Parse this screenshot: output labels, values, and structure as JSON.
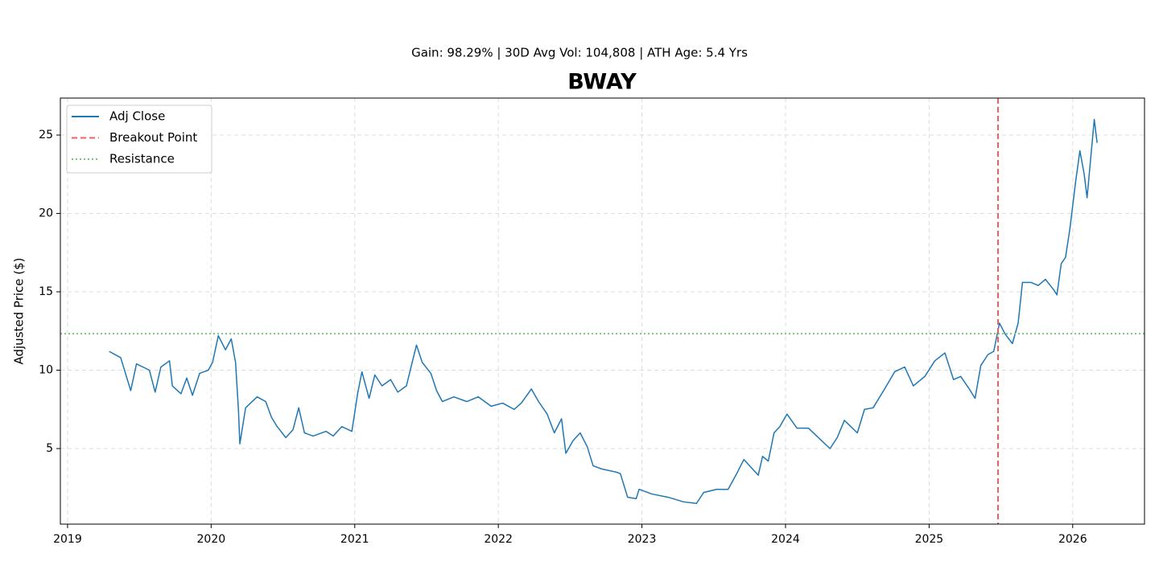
{
  "chart_data": {
    "type": "line",
    "title": "BWAY",
    "subtitle": "Gain: 98.29% | 30D Avg Vol: 104,808 | ATH Age: 5.4 Yrs",
    "y_label": "Adjusted Price ($)",
    "x": [
      2019.29,
      2019.37,
      2019.44,
      2019.48,
      2019.57,
      2019.61,
      2019.65,
      2019.71,
      2019.73,
      2019.79,
      2019.83,
      2019.87,
      2019.92,
      2019.98,
      2020.01,
      2020.05,
      2020.1,
      2020.14,
      2020.17,
      2020.19,
      2020.2,
      2020.24,
      2020.32,
      2020.38,
      2020.42,
      2020.46,
      2020.52,
      2020.57,
      2020.61,
      2020.65,
      2020.71,
      2020.8,
      2020.85,
      2020.91,
      2020.98,
      2021.02,
      2021.05,
      2021.1,
      2021.14,
      2021.19,
      2021.25,
      2021.3,
      2021.36,
      2021.4,
      2021.43,
      2021.47,
      2021.53,
      2021.57,
      2021.61,
      2021.69,
      2021.78,
      2021.86,
      2021.95,
      2022.03,
      2022.11,
      2022.16,
      2022.23,
      2022.28,
      2022.34,
      2022.39,
      2022.44,
      2022.47,
      2022.52,
      2022.57,
      2022.62,
      2022.66,
      2022.72,
      2022.82,
      2022.85,
      2022.9,
      2022.96,
      2022.98,
      2023.07,
      2023.18,
      2023.29,
      2023.38,
      2023.43,
      2023.52,
      2023.6,
      2023.66,
      2023.71,
      2023.77,
      2023.81,
      2023.84,
      2023.88,
      2023.92,
      2023.96,
      2024.01,
      2024.08,
      2024.16,
      2024.24,
      2024.31,
      2024.36,
      2024.41,
      2024.5,
      2024.55,
      2024.61,
      2024.69,
      2024.76,
      2024.83,
      2024.89,
      2024.97,
      2025.04,
      2025.11,
      2025.17,
      2025.22,
      2025.28,
      2025.32,
      2025.36,
      2025.41,
      2025.45,
      2025.49,
      2025.53,
      2025.58,
      2025.62,
      2025.65,
      2025.71,
      2025.76,
      2025.81,
      2025.87,
      2025.89,
      2025.92,
      2025.95,
      2025.98,
      2026.02,
      2026.05,
      2026.08,
      2026.1,
      2026.13,
      2026.15,
      2026.17
    ],
    "series": [
      {
        "name": "Adj Close",
        "color": "#1f77b4",
        "values": [
          11.2,
          10.8,
          8.7,
          10.4,
          10.0,
          8.6,
          10.2,
          10.6,
          9.0,
          8.5,
          9.5,
          8.4,
          9.8,
          10.0,
          10.5,
          12.2,
          11.3,
          12.0,
          10.5,
          7.5,
          5.3,
          7.6,
          8.3,
          8.0,
          7.0,
          6.4,
          5.7,
          6.2,
          7.6,
          6.0,
          5.8,
          6.1,
          5.8,
          6.4,
          6.1,
          8.5,
          9.9,
          8.2,
          9.7,
          9.0,
          9.4,
          8.6,
          9.0,
          10.5,
          11.6,
          10.5,
          9.8,
          8.7,
          8.0,
          8.3,
          8.0,
          8.3,
          7.7,
          7.9,
          7.5,
          7.9,
          8.8,
          8.0,
          7.2,
          6.0,
          6.9,
          4.7,
          5.5,
          6.0,
          5.1,
          3.9,
          3.7,
          3.5,
          3.4,
          1.9,
          1.8,
          2.4,
          2.1,
          1.9,
          1.6,
          1.5,
          2.2,
          2.4,
          2.4,
          3.4,
          4.3,
          3.7,
          3.3,
          4.5,
          4.2,
          6.0,
          6.4,
          7.2,
          6.3,
          6.3,
          5.6,
          5.0,
          5.7,
          6.8,
          6.0,
          7.5,
          7.6,
          8.8,
          9.9,
          10.2,
          9.0,
          9.6,
          10.6,
          11.1,
          9.4,
          9.6,
          8.8,
          8.2,
          10.3,
          11.0,
          11.2,
          13.0,
          12.3,
          11.7,
          13.0,
          15.6,
          15.6,
          15.4,
          15.8,
          15.1,
          14.8,
          16.8,
          17.2,
          19.0,
          22.0,
          24.0,
          22.5,
          21.0,
          24.0,
          26.0,
          24.5
        ]
      }
    ],
    "breakout": {
      "name": "Breakout Point",
      "x": 2025.48,
      "color": "#f06060"
    },
    "resistance": {
      "name": "Resistance",
      "value": 12.33,
      "color": "#7cc47c"
    },
    "xlim": [
      2018.95,
      2026.5
    ],
    "ylim": [
      0.18,
      27.36
    ],
    "xticks": [
      2019,
      2020,
      2021,
      2022,
      2023,
      2024,
      2025,
      2026
    ],
    "yticks": [
      5,
      10,
      15,
      20,
      25
    ],
    "grid": true,
    "legend": "upper left"
  }
}
